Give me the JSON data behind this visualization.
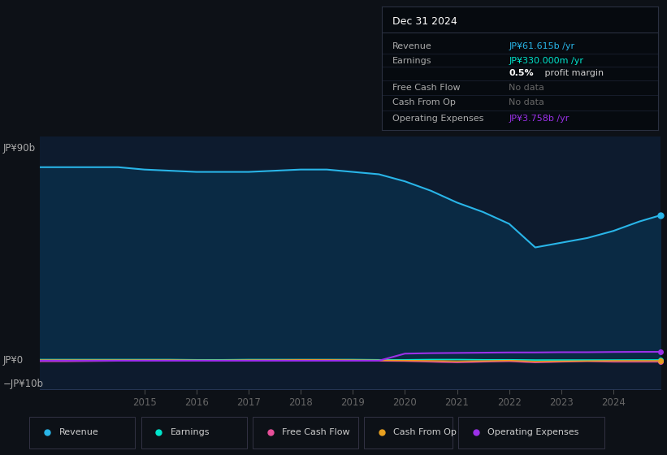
{
  "bg_color": "#0d1117",
  "chart_bg": "#0d1b2e",
  "years": [
    2013.0,
    2013.5,
    2014.0,
    2014.5,
    2015.0,
    2015.5,
    2016.0,
    2016.5,
    2017.0,
    2017.5,
    2018.0,
    2018.5,
    2019.0,
    2019.5,
    2020.0,
    2020.5,
    2021.0,
    2021.5,
    2022.0,
    2022.5,
    2023.0,
    2023.5,
    2024.0,
    2024.5,
    2024.9
  ],
  "revenue": [
    82,
    82,
    82,
    82,
    81,
    80.5,
    80,
    80,
    80,
    80.5,
    81,
    81,
    80,
    79,
    76,
    72,
    67,
    63,
    58,
    48,
    50,
    52,
    55,
    59,
    61.6
  ],
  "earnings": [
    0.5,
    0.5,
    0.5,
    0.5,
    0.5,
    0.5,
    0.4,
    0.4,
    0.5,
    0.5,
    0.5,
    0.5,
    0.5,
    0.4,
    0.4,
    0.5,
    0.5,
    0.4,
    0.4,
    0.3,
    0.3,
    0.3,
    0.3,
    0.33,
    0.33
  ],
  "free_cash_flow": [
    -0.3,
    -0.3,
    -0.2,
    -0.1,
    0.0,
    0.1,
    0.1,
    0.0,
    -0.1,
    0.0,
    0.1,
    0.1,
    0.0,
    -0.1,
    -0.2,
    -0.5,
    -0.8,
    -0.5,
    -0.3,
    -0.8,
    -0.5,
    -0.3,
    -0.5,
    -0.5,
    -0.5
  ],
  "cash_from_op": [
    0.3,
    0.3,
    0.3,
    0.3,
    0.3,
    0.3,
    0.2,
    0.2,
    0.3,
    0.3,
    0.4,
    0.4,
    0.3,
    0.2,
    0.1,
    0.0,
    -0.2,
    -0.1,
    0.1,
    -0.3,
    -0.2,
    -0.1,
    0.0,
    0.0,
    0.0
  ],
  "op_expenses": [
    0.0,
    0.0,
    0.0,
    0.0,
    0.0,
    0.0,
    0.0,
    0.0,
    0.0,
    0.0,
    0.0,
    0.0,
    0.0,
    0.0,
    3.0,
    3.2,
    3.3,
    3.4,
    3.5,
    3.5,
    3.6,
    3.6,
    3.7,
    3.75,
    3.758
  ],
  "revenue_color": "#29b5e8",
  "earnings_color": "#00e5cc",
  "fcf_color": "#e8509a",
  "cash_op_color": "#e8a020",
  "op_exp_color": "#9b30e8",
  "fill_color": "#0a2a44",
  "ylim_min": -12,
  "ylim_max": 95,
  "y_zero": 0,
  "y_top": 90,
  "y_bot": -10,
  "xticks": [
    2015,
    2016,
    2017,
    2018,
    2019,
    2020,
    2021,
    2022,
    2023,
    2024
  ],
  "legend_items": [
    {
      "label": "Revenue",
      "color": "#29b5e8"
    },
    {
      "label": "Earnings",
      "color": "#00e5cc"
    },
    {
      "label": "Free Cash Flow",
      "color": "#e8509a"
    },
    {
      "label": "Cash From Op",
      "color": "#e8a020"
    },
    {
      "label": "Operating Expenses",
      "color": "#9b30e8"
    }
  ],
  "info_title": "Dec 31 2024",
  "info_rows": [
    {
      "label": "Revenue",
      "value": "JP¥61.615b /yr",
      "value_color": "#29b5e8",
      "label_color": "#aaaaaa"
    },
    {
      "label": "Earnings",
      "value": "JP¥330.000m /yr",
      "value_color": "#00e5cc",
      "label_color": "#aaaaaa"
    },
    {
      "label": "",
      "value": "0.5% profit margin",
      "value_color": "#dddddd",
      "label_color": "#aaaaaa",
      "bold_pct": true
    },
    {
      "label": "Free Cash Flow",
      "value": "No data",
      "value_color": "#666666",
      "label_color": "#aaaaaa"
    },
    {
      "label": "Cash From Op",
      "value": "No data",
      "value_color": "#666666",
      "label_color": "#aaaaaa"
    },
    {
      "label": "Operating Expenses",
      "value": "JP¥3.758b /yr",
      "value_color": "#9b30e8",
      "label_color": "#aaaaaa"
    }
  ]
}
